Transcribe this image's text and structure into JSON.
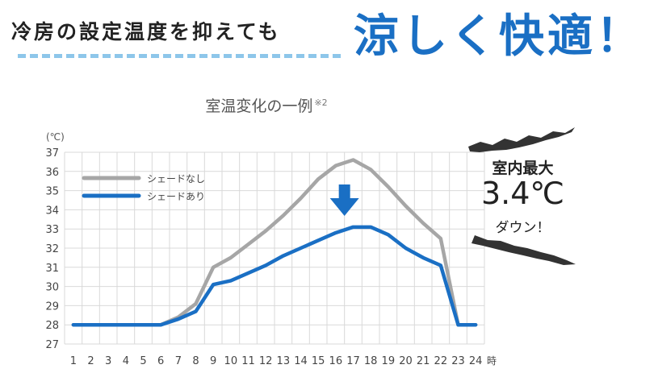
{
  "headline": {
    "left_text": "冷房の設定温度を抑えても",
    "right_text": "涼しく快適！",
    "right_color": "#1a6fc4"
  },
  "chart_data": {
    "type": "line",
    "title": "室温変化の一例",
    "title_note": "※2",
    "ylabel": "(℃)",
    "xunit": "時",
    "x": [
      1,
      2,
      3,
      4,
      5,
      6,
      7,
      8,
      9,
      10,
      11,
      12,
      13,
      14,
      15,
      16,
      17,
      18,
      19,
      20,
      21,
      22,
      23,
      24
    ],
    "ylim": [
      27,
      37
    ],
    "yticks": [
      27,
      28,
      29,
      30,
      31,
      32,
      33,
      34,
      35,
      36,
      37
    ],
    "grid": true,
    "legend_position": "top-left",
    "series": [
      {
        "name": "シェードなし",
        "color": "#a6a6a6",
        "values": [
          28.0,
          28.0,
          28.0,
          28.0,
          28.0,
          28.0,
          28.4,
          29.1,
          31.0,
          31.5,
          32.2,
          32.9,
          33.7,
          34.6,
          35.6,
          36.3,
          36.6,
          36.1,
          35.2,
          34.2,
          33.3,
          32.5,
          28.0,
          28.0
        ]
      },
      {
        "name": "シェードあり",
        "color": "#1a6fc4",
        "values": [
          28.0,
          28.0,
          28.0,
          28.0,
          28.0,
          28.0,
          28.3,
          28.7,
          30.1,
          30.3,
          30.7,
          31.1,
          31.6,
          32.0,
          32.4,
          32.8,
          33.1,
          33.1,
          32.7,
          32.0,
          31.5,
          31.1,
          28.0,
          28.0
        ]
      }
    ],
    "arrow_color": "#1a6fc4"
  },
  "callout": {
    "line1": "室内最大",
    "line2": "3.4℃",
    "line3": "ダウン！"
  }
}
